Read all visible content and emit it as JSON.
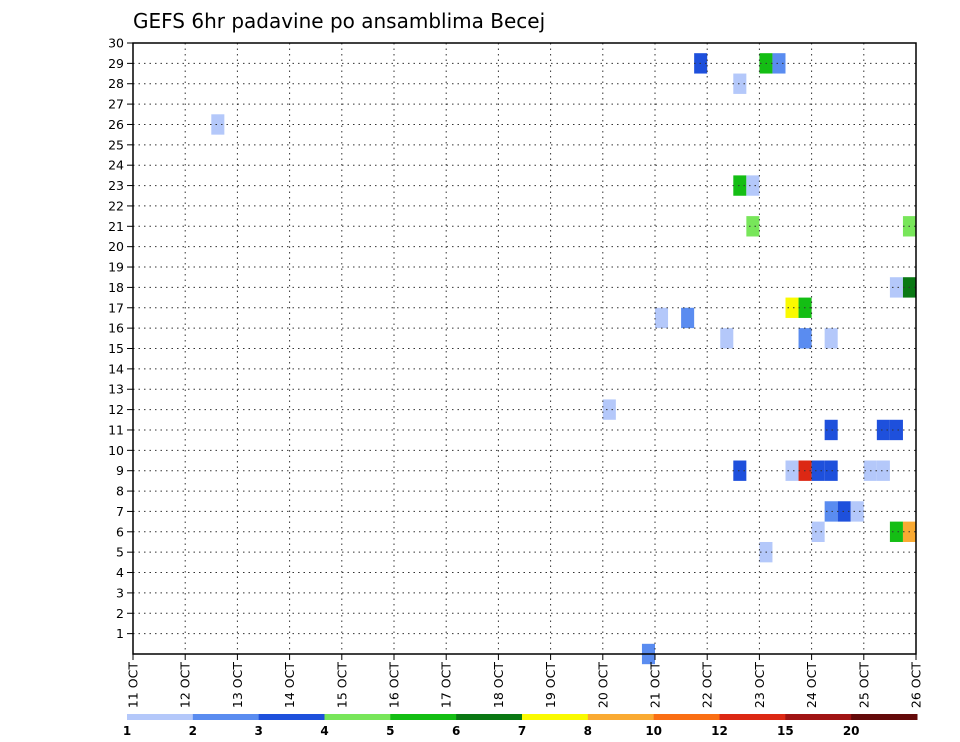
{
  "chart_data": {
    "type": "heatmap",
    "title": "GEFS 6hr padavine po ansamblima Becej",
    "xlabel": "",
    "ylabel": "",
    "x_tick_labels": [
      "11 OCT",
      "12 OCT",
      "13 OCT",
      "14 OCT",
      "15 OCT",
      "16 OCT",
      "17 OCT",
      "18 OCT",
      "19 OCT",
      "20 OCT",
      "21 OCT",
      "22 OCT",
      "23 OCT",
      "24 OCT",
      "25 OCT",
      "26 OCT"
    ],
    "y_tick_labels": [
      "1",
      "2",
      "3",
      "4",
      "5",
      "6",
      "7",
      "8",
      "9",
      "10",
      "11",
      "12",
      "13",
      "14",
      "15",
      "16",
      "17",
      "18",
      "19",
      "20",
      "21",
      "22",
      "23",
      "24",
      "25",
      "26",
      "27",
      "28",
      "29",
      "30"
    ],
    "xlim_days": [
      0,
      15
    ],
    "ylim": [
      0,
      30
    ],
    "grid": true,
    "x_step_hours": 6,
    "colorbar": {
      "colors": [
        "#b4c8fa",
        "#5a8cf0",
        "#1e50dc",
        "#78e65a",
        "#14be14",
        "#0a7814",
        "#fafa00",
        "#faaa32",
        "#fa6e14",
        "#dc2814",
        "#a01414",
        "#640a0a"
      ],
      "labels": [
        "1",
        "2",
        "3",
        "4",
        "5",
        "6",
        "7",
        "8",
        "10",
        "12",
        "15",
        "20"
      ]
    },
    "cells": [
      {
        "member": 29,
        "day": 10.875,
        "color": 2
      },
      {
        "member": 29,
        "day": 12.125,
        "color": 4
      },
      {
        "member": 29,
        "day": 12.375,
        "color": 1
      },
      {
        "member": 28,
        "day": 11.625,
        "color": 0
      },
      {
        "member": 26,
        "day": 1.625,
        "color": 0
      },
      {
        "member": 23,
        "day": 11.625,
        "color": 4
      },
      {
        "member": 23,
        "day": 11.875,
        "color": 0
      },
      {
        "member": 21,
        "day": 11.875,
        "color": 3
      },
      {
        "member": 21,
        "day": 14.875,
        "color": 3
      },
      {
        "member": 18,
        "day": 14.625,
        "color": 0
      },
      {
        "member": 18,
        "day": 14.875,
        "color": 5
      },
      {
        "member": 17,
        "day": 12.625,
        "color": 6
      },
      {
        "member": 17,
        "day": 12.875,
        "color": 4
      },
      {
        "member": 16.5,
        "day": 10.125,
        "color": 0
      },
      {
        "member": 16.5,
        "day": 10.625,
        "color": 1
      },
      {
        "member": 15.5,
        "day": 11.375,
        "color": 0
      },
      {
        "member": 15.5,
        "day": 12.875,
        "color": 1
      },
      {
        "member": 15.5,
        "day": 13.375,
        "color": 0
      },
      {
        "member": 12,
        "day": 9.125,
        "color": 0
      },
      {
        "member": 11,
        "day": 13.375,
        "color": 2
      },
      {
        "member": 11,
        "day": 14.375,
        "color": 2
      },
      {
        "member": 11,
        "day": 14.625,
        "color": 2
      },
      {
        "member": 9,
        "day": 11.625,
        "color": 2
      },
      {
        "member": 9,
        "day": 12.625,
        "color": 0
      },
      {
        "member": 9,
        "day": 12.875,
        "color": 9
      },
      {
        "member": 9,
        "day": 13.125,
        "color": 2
      },
      {
        "member": 9,
        "day": 13.375,
        "color": 2
      },
      {
        "member": 9,
        "day": 14.125,
        "color": 0
      },
      {
        "member": 9,
        "day": 14.375,
        "color": 0
      },
      {
        "member": 7,
        "day": 13.375,
        "color": 1
      },
      {
        "member": 7,
        "day": 13.625,
        "color": 2
      },
      {
        "member": 7,
        "day": 13.875,
        "color": 0
      },
      {
        "member": 6,
        "day": 13.125,
        "color": 0
      },
      {
        "member": 6,
        "day": 14.625,
        "color": 4
      },
      {
        "member": 6,
        "day": 14.875,
        "color": 7
      },
      {
        "member": 5,
        "day": 12.125,
        "color": 0
      },
      {
        "member": 0,
        "day": 9.875,
        "color": 1
      }
    ]
  }
}
